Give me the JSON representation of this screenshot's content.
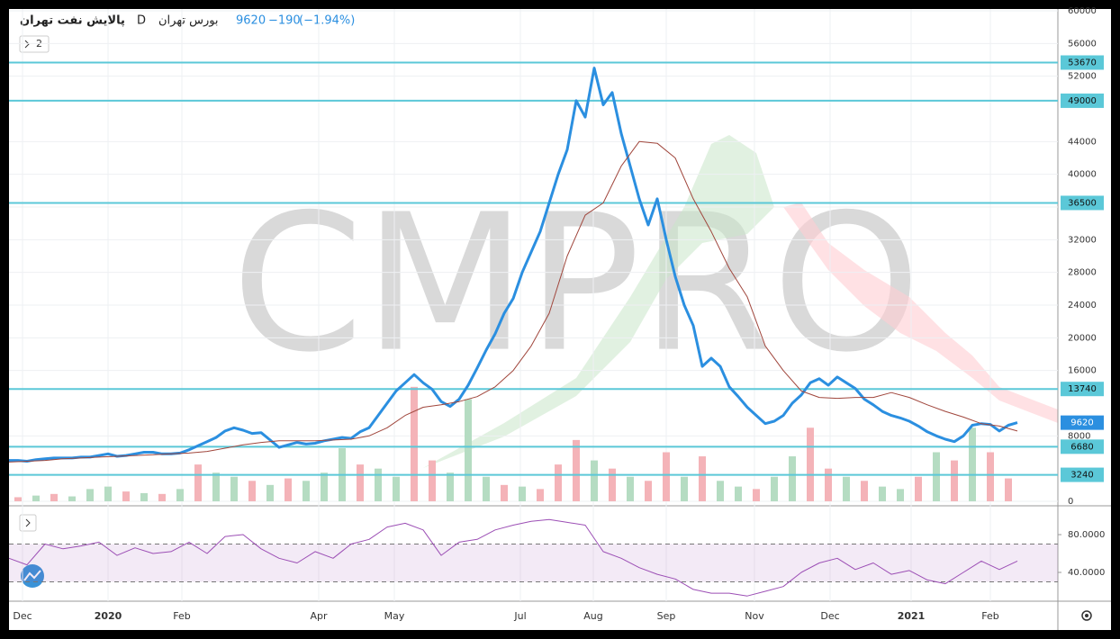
{
  "ui": {
    "collapsed_count": "2"
  },
  "chart_data": {
    "type": "line",
    "title": "پالایش نفت تهران",
    "interval": "D",
    "exchange": "بورس تهران",
    "last": 9620,
    "change": {
      "value": -190,
      "label": "−190"
    },
    "change_pct": {
      "value": -1.94,
      "label": "(−1.94%)"
    },
    "watermark": "CMPRO",
    "xlim": [
      0,
      116.5
    ],
    "xticks": [
      {
        "value": 1.5,
        "label": "Dec"
      },
      {
        "value": 11,
        "label": "2020"
      },
      {
        "value": 19.2,
        "label": "Feb"
      },
      {
        "value": 34.4,
        "label": "Apr"
      },
      {
        "value": 42.8,
        "label": "May"
      },
      {
        "value": 56.8,
        "label": "Jul"
      },
      {
        "value": 64.9,
        "label": "Aug"
      },
      {
        "value": 73,
        "label": "Sep"
      },
      {
        "value": 82.8,
        "label": "Nov"
      },
      {
        "value": 91.2,
        "label": "Dec"
      },
      {
        "value": 100.2,
        "label": "2021"
      },
      {
        "value": 109,
        "label": "Feb"
      }
    ],
    "ylim": [
      0,
      60000
    ],
    "yticks": [
      0,
      8000,
      16000,
      20000,
      24000,
      28000,
      32000,
      36000,
      40000,
      44000,
      52000,
      56000,
      60000
    ],
    "grid": true,
    "levels": [
      53670,
      49000,
      36500,
      13740,
      6680,
      3240
    ],
    "level_color": "#5bc8d8",
    "series": [
      {
        "color": "#2b8fe0",
        "x": [
          0,
          1,
          2,
          3,
          4,
          5,
          6,
          7,
          8,
          9,
          10,
          11,
          12,
          13,
          14,
          15,
          16,
          17,
          18,
          19,
          20,
          21,
          22,
          23,
          24,
          25,
          26,
          27,
          28,
          29,
          30,
          31,
          32,
          33,
          34,
          35,
          36,
          37,
          38,
          39,
          40,
          41,
          42,
          43,
          44,
          45,
          46,
          47,
          48,
          49,
          50,
          51,
          52,
          53,
          54,
          55,
          56,
          57,
          58,
          59,
          60,
          61,
          62,
          63,
          64,
          65,
          66,
          67,
          68,
          69,
          70,
          71,
          72,
          73,
          74,
          75,
          76,
          77,
          78,
          79,
          80,
          81,
          82,
          83,
          84,
          85,
          86,
          87,
          88,
          89,
          90,
          91,
          92,
          93,
          94,
          95,
          96,
          97,
          98,
          99,
          100,
          101,
          102,
          103,
          104,
          105,
          106,
          107,
          108,
          109,
          110,
          111,
          112
        ],
        "values": [
          5000,
          5000,
          4900,
          5100,
          5200,
          5300,
          5300,
          5300,
          5400,
          5400,
          5600,
          5800,
          5500,
          5600,
          5800,
          6000,
          6000,
          5800,
          5800,
          5900,
          6300,
          6800,
          7300,
          7800,
          8600,
          9000,
          8700,
          8300,
          8400,
          7500,
          6600,
          6900,
          7200,
          7000,
          7100,
          7400,
          7600,
          7800,
          7700,
          8500,
          9000,
          10500,
          12000,
          13500,
          14500,
          15500,
          14500,
          13700,
          12200,
          11600,
          12500,
          14200,
          16300,
          18500,
          20500,
          23000,
          24800,
          28000,
          30500,
          33000,
          36500,
          40000,
          43000,
          49000,
          47000,
          53000,
          48500,
          50000,
          45000,
          41000,
          37000,
          33800,
          37000,
          32000,
          27500,
          24000,
          21500,
          16500,
          17500,
          16500,
          14000,
          12800,
          11500,
          10500,
          9500,
          9800,
          10500,
          12000,
          13000,
          14500,
          15000,
          14200,
          15200,
          14500,
          13800,
          12500,
          11800,
          11000,
          10500,
          10200,
          9800,
          9200,
          8500,
          8000,
          7600,
          7300,
          8000,
          9300,
          9500,
          9400,
          8600,
          9300,
          9620
        ]
      },
      {
        "color": "#a0463c",
        "x": [
          0,
          2,
          4,
          6,
          8,
          10,
          12,
          14,
          16,
          18,
          20,
          22,
          24,
          26,
          28,
          30,
          32,
          34,
          36,
          38,
          40,
          42,
          44,
          46,
          48,
          50,
          52,
          54,
          56,
          58,
          60,
          62,
          64,
          66,
          68,
          70,
          72,
          74,
          76,
          78,
          80,
          82,
          84,
          86,
          88,
          90,
          92,
          94,
          96,
          98,
          100,
          102,
          104,
          106,
          108,
          110,
          112
        ],
        "values": [
          4800,
          4900,
          5000,
          5200,
          5300,
          5400,
          5500,
          5600,
          5700,
          5800,
          5900,
          6100,
          6500,
          6900,
          7200,
          7400,
          7400,
          7400,
          7500,
          7600,
          8000,
          9000,
          10500,
          11500,
          11800,
          12200,
          12800,
          14000,
          16000,
          19000,
          23000,
          30000,
          35000,
          36500,
          41000,
          44000,
          43800,
          42000,
          37000,
          33000,
          28500,
          25000,
          19000,
          16000,
          13500,
          12700,
          12600,
          12700,
          12700,
          13300,
          12700,
          11800,
          11000,
          10300,
          9500,
          9200,
          8600
        ]
      }
    ],
    "volume": {
      "x": [
        1,
        3,
        5,
        7,
        9,
        11,
        13,
        15,
        17,
        19,
        21,
        23,
        25,
        27,
        29,
        31,
        33,
        35,
        37,
        39,
        41,
        43,
        45,
        47,
        49,
        51,
        53,
        55,
        57,
        59,
        61,
        63,
        65,
        67,
        69,
        71,
        73,
        75,
        77,
        79,
        81,
        83,
        85,
        87,
        89,
        91,
        93,
        95,
        97,
        99,
        101,
        103,
        105,
        107,
        109,
        111
      ],
      "values": [
        500,
        700,
        900,
        600,
        1500,
        1800,
        1200,
        1000,
        900,
        1500,
        4500,
        3500,
        3000,
        2500,
        2000,
        2800,
        2500,
        3500,
        6500,
        4500,
        4000,
        3000,
        14000,
        5000,
        3500,
        12500,
        3000,
        2000,
        1800,
        1500,
        4500,
        7500,
        5000,
        4000,
        3000,
        2500,
        6000,
        3000,
        5500,
        2500,
        1800,
        1500,
        3000,
        5500,
        9000,
        4000,
        3000,
        2500,
        1800,
        1500,
        3000,
        6000,
        5000,
        9000,
        6000,
        2800
      ],
      "colors": [
        "#f4b3b8",
        "#b5dcc2",
        "#f4b3b8",
        "#b5dcc2",
        "#b5dcc2",
        "#b5dcc2",
        "#f4b3b8",
        "#b5dcc2",
        "#f4b3b8",
        "#b5dcc2",
        "#f4b3b8",
        "#b5dcc2",
        "#b5dcc2",
        "#f4b3b8",
        "#b5dcc2",
        "#f4b3b8",
        "#b5dcc2",
        "#b5dcc2",
        "#b5dcc2",
        "#f4b3b8",
        "#b5dcc2",
        "#b5dcc2",
        "#f4b3b8",
        "#f4b3b8",
        "#b5dcc2",
        "#b5dcc2",
        "#b5dcc2",
        "#f4b3b8",
        "#b5dcc2",
        "#f4b3b8",
        "#f4b3b8",
        "#f4b3b8",
        "#b5dcc2",
        "#f4b3b8",
        "#b5dcc2",
        "#f4b3b8",
        "#f4b3b8",
        "#b5dcc2",
        "#f4b3b8",
        "#b5dcc2",
        "#b5dcc2",
        "#f4b3b8",
        "#b5dcc2",
        "#b5dcc2",
        "#f4b3b8",
        "#f4b3b8",
        "#b5dcc2",
        "#f4b3b8",
        "#b5dcc2",
        "#b5dcc2",
        "#f4b3b8",
        "#b5dcc2",
        "#f4b3b8",
        "#b5dcc2",
        "#f4b3b8",
        "#f4b3b8"
      ]
    },
    "rsi": {
      "color": "#9c4fb5",
      "ylim": [
        9.5,
        106.7
      ],
      "yticks": [
        {
          "value": 80,
          "label": "80.0000"
        },
        {
          "value": 40,
          "label": "40.0000"
        }
      ],
      "bands": [
        70,
        30
      ],
      "x": [
        0,
        2,
        4,
        6,
        8,
        10,
        12,
        14,
        16,
        18,
        20,
        22,
        24,
        26,
        28,
        30,
        32,
        34,
        36,
        38,
        40,
        42,
        44,
        46,
        48,
        50,
        52,
        54,
        56,
        58,
        60,
        62,
        64,
        66,
        68,
        70,
        72,
        74,
        76,
        78,
        80,
        82,
        84,
        86,
        88,
        90,
        92,
        94,
        96,
        98,
        100,
        102,
        104,
        106,
        108,
        110,
        112
      ],
      "values": [
        55,
        48,
        70,
        65,
        68,
        72,
        58,
        66,
        60,
        62,
        72,
        60,
        78,
        80,
        65,
        55,
        50,
        62,
        55,
        70,
        75,
        88,
        92,
        85,
        58,
        72,
        75,
        85,
        90,
        94,
        96,
        93,
        90,
        62,
        55,
        45,
        38,
        33,
        22,
        18,
        18,
        15,
        20,
        25,
        40,
        50,
        55,
        43,
        50,
        38,
        42,
        32,
        28,
        40,
        52,
        43,
        52
      ]
    }
  }
}
